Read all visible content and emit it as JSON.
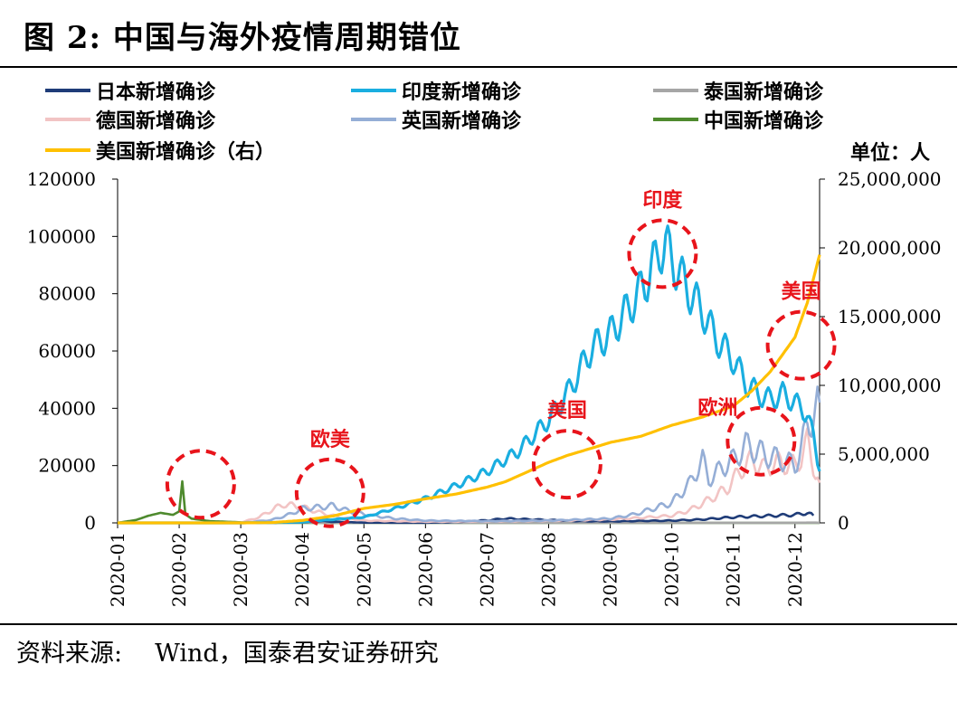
{
  "figure": {
    "title": "图 2:  中国与海外疫情周期错位",
    "source_label": "资料来源:",
    "source_text": "Wind，国泰君安证券研究"
  },
  "colors": {
    "japan": "#1F3C78",
    "india": "#1AAEE0",
    "thailand": "#A6A6A6",
    "germany": "#F2C4C4",
    "uk": "#95AED6",
    "china": "#4E8A2E",
    "usa": "#FFC000",
    "annotation": "#E8141B"
  },
  "chart_data": {
    "type": "line",
    "title": "中国与海外疫情周期错位",
    "unit_label": "单位：人",
    "x_tick_labels": [
      "2020-01",
      "2020-02",
      "2020-03",
      "2020-04",
      "2020-05",
      "2020-06",
      "2020-07",
      "2020-08",
      "2020-09",
      "2020-10",
      "2020-11",
      "2020-12"
    ],
    "y_left": {
      "min": 0,
      "max": 120000,
      "ticks": [
        0,
        20000,
        40000,
        60000,
        80000,
        100000,
        120000
      ],
      "tick_labels": [
        "0",
        "20000",
        "40000",
        "60000",
        "80000",
        "100000",
        "120000"
      ]
    },
    "y_right": {
      "min": 0,
      "max": 25000000,
      "ticks": [
        0,
        5000000,
        10000000,
        15000000,
        20000000,
        25000000
      ],
      "tick_labels": [
        "0",
        "5,000,000",
        "10,000,000",
        "15,000,000",
        "20,000,000",
        "25,000,000"
      ]
    },
    "legend_position": "top",
    "series": [
      {
        "key": "japan",
        "name": "日本新增确诊",
        "axis": "left",
        "points": [
          [
            0,
            0
          ],
          [
            1,
            0
          ],
          [
            2,
            20
          ],
          [
            2.5,
            60
          ],
          [
            3,
            200
          ],
          [
            3.3,
            600
          ],
          [
            3.5,
            400
          ],
          [
            4,
            100
          ],
          [
            5,
            50
          ],
          [
            5.5,
            300
          ],
          [
            6,
            900
          ],
          [
            6.3,
            1500
          ],
          [
            7,
            1000
          ],
          [
            7.5,
            600
          ],
          [
            8,
            500
          ],
          [
            8.5,
            700
          ],
          [
            9,
            800
          ],
          [
            9.5,
            1200
          ],
          [
            10,
            2000
          ],
          [
            10.5,
            2400
          ],
          [
            11,
            2800
          ],
          [
            11.2,
            3500
          ],
          [
            11.3,
            2600
          ]
        ]
      },
      {
        "key": "india",
        "name": "印度新增确诊",
        "axis": "left",
        "points": [
          [
            0,
            0
          ],
          [
            2,
            0
          ],
          [
            3,
            300
          ],
          [
            3.5,
            1200
          ],
          [
            4,
            2000
          ],
          [
            4.5,
            5000
          ],
          [
            5,
            8500
          ],
          [
            5.5,
            13000
          ],
          [
            6,
            18000
          ],
          [
            6.5,
            25000
          ],
          [
            7,
            36000
          ],
          [
            7.3,
            45000
          ],
          [
            7.5,
            53000
          ],
          [
            7.7,
            61000
          ],
          [
            8,
            66000
          ],
          [
            8.2,
            72000
          ],
          [
            8.4,
            78000
          ],
          [
            8.6,
            85000
          ],
          [
            8.8,
            95000
          ],
          [
            8.9,
            97000
          ],
          [
            9,
            92000
          ],
          [
            9.1,
            88000
          ],
          [
            9.3,
            80000
          ],
          [
            9.5,
            74000
          ],
          [
            9.7,
            65000
          ],
          [
            10,
            57000
          ],
          [
            10.2,
            49000
          ],
          [
            10.4,
            45000
          ],
          [
            10.6,
            43000
          ],
          [
            10.8,
            45000
          ],
          [
            11,
            42000
          ],
          [
            11.2,
            38000
          ],
          [
            11.3,
            30000
          ],
          [
            11.4,
            18000
          ]
        ]
      },
      {
        "key": "thailand",
        "name": "泰国新增确诊",
        "axis": "left",
        "points": [
          [
            0,
            0
          ],
          [
            2,
            10
          ],
          [
            2.8,
            100
          ],
          [
            3,
            150
          ],
          [
            3.3,
            80
          ],
          [
            4,
            20
          ],
          [
            11,
            40
          ],
          [
            11.3,
            100
          ],
          [
            11.4,
            60
          ]
        ]
      },
      {
        "key": "germany",
        "name": "德国新增确诊",
        "axis": "left",
        "points": [
          [
            0,
            0
          ],
          [
            1,
            10
          ],
          [
            2,
            100
          ],
          [
            2.3,
            2000
          ],
          [
            2.5,
            4500
          ],
          [
            2.7,
            6500
          ],
          [
            3,
            5500
          ],
          [
            3.3,
            3500
          ],
          [
            3.6,
            2000
          ],
          [
            4,
            800
          ],
          [
            5,
            400
          ],
          [
            6,
            500
          ],
          [
            7,
            700
          ],
          [
            8,
            1200
          ],
          [
            8.5,
            1800
          ],
          [
            9,
            2500
          ],
          [
            9.3,
            4500
          ],
          [
            9.6,
            8000
          ],
          [
            9.9,
            12000
          ],
          [
            10.1,
            18000
          ],
          [
            10.3,
            22000
          ],
          [
            10.5,
            19000
          ],
          [
            10.7,
            21000
          ],
          [
            11,
            20000
          ],
          [
            11.1,
            23000
          ],
          [
            11.2,
            28000
          ],
          [
            11.3,
            20000
          ],
          [
            11.4,
            14000
          ]
        ]
      },
      {
        "key": "uk",
        "name": "英国新增确诊",
        "axis": "left",
        "points": [
          [
            0,
            0
          ],
          [
            2,
            50
          ],
          [
            2.5,
            1000
          ],
          [
            2.8,
            3000
          ],
          [
            3,
            5000
          ],
          [
            3.3,
            5500
          ],
          [
            3.5,
            6000
          ],
          [
            3.7,
            4500
          ],
          [
            4,
            3000
          ],
          [
            4.5,
            1500
          ],
          [
            5,
            800
          ],
          [
            6,
            600
          ],
          [
            7,
            800
          ],
          [
            8,
            1500
          ],
          [
            8.4,
            3000
          ],
          [
            8.7,
            5000
          ],
          [
            9,
            7000
          ],
          [
            9.3,
            14000
          ],
          [
            9.5,
            22000
          ],
          [
            9.6,
            15000
          ],
          [
            9.8,
            19000
          ],
          [
            10,
            22000
          ],
          [
            10.2,
            27000
          ],
          [
            10.4,
            25000
          ],
          [
            10.6,
            23000
          ],
          [
            10.8,
            22000
          ],
          [
            11,
            20000
          ],
          [
            11.1,
            26000
          ],
          [
            11.2,
            34000
          ],
          [
            11.3,
            38000
          ],
          [
            11.4,
            42000
          ]
        ]
      },
      {
        "key": "china",
        "name": "中国新增确诊",
        "axis": "left",
        "points": [
          [
            0,
            0
          ],
          [
            0.3,
            1000
          ],
          [
            0.5,
            2500
          ],
          [
            0.7,
            3500
          ],
          [
            0.9,
            2800
          ],
          [
            1,
            4000
          ],
          [
            1.05,
            14500
          ],
          [
            1.1,
            3000
          ],
          [
            1.2,
            1500
          ],
          [
            1.5,
            600
          ],
          [
            2,
            200
          ],
          [
            2.5,
            50
          ],
          [
            3,
            30
          ],
          [
            4,
            10
          ],
          [
            11.4,
            10
          ]
        ]
      },
      {
        "key": "usa",
        "name": "美国新增确诊（右）",
        "axis": "right",
        "points": [
          [
            0,
            0
          ],
          [
            1,
            0
          ],
          [
            2,
            100
          ],
          [
            2.5,
            20000
          ],
          [
            3,
            180000
          ],
          [
            3.5,
            500000
          ],
          [
            4,
            1050000
          ],
          [
            4.5,
            1350000
          ],
          [
            5,
            1750000
          ],
          [
            5.5,
            2100000
          ],
          [
            6,
            2600000
          ],
          [
            6.3,
            3000000
          ],
          [
            6.6,
            3600000
          ],
          [
            7,
            4400000
          ],
          [
            7.3,
            4900000
          ],
          [
            7.6,
            5300000
          ],
          [
            8,
            5850000
          ],
          [
            8.5,
            6300000
          ],
          [
            9,
            7100000
          ],
          [
            9.5,
            7700000
          ],
          [
            10,
            8500000
          ],
          [
            10.3,
            9600000
          ],
          [
            10.6,
            11000000
          ],
          [
            11,
            13500000
          ],
          [
            11.2,
            16000000
          ],
          [
            11.4,
            19500000
          ]
        ]
      }
    ],
    "annotations": [
      {
        "label": "",
        "x": 1.35,
        "y_left": 13500
      },
      {
        "label": "欧美",
        "x": 3.45,
        "y_left": 10500
      },
      {
        "label": "美国",
        "x": 7.3,
        "y_left": 20500
      },
      {
        "label": "印度",
        "x": 8.85,
        "y_left": 94000
      },
      {
        "label": "欧洲",
        "x": 10.45,
        "y_left": 28500
      },
      {
        "label": "美国",
        "x": 11.1,
        "y_left": 62000
      }
    ]
  }
}
